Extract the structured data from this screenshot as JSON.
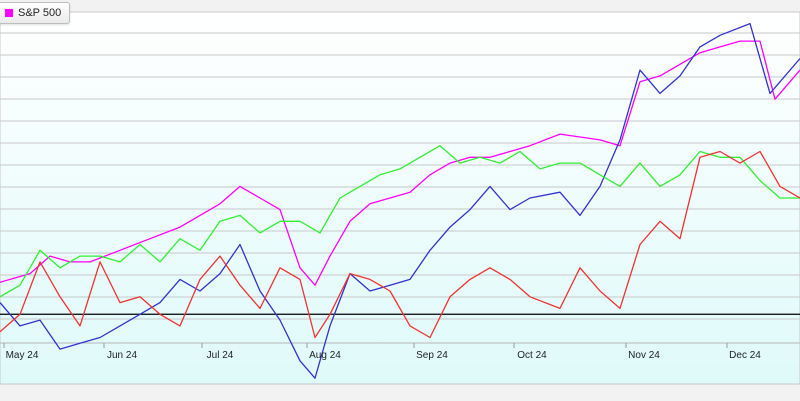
{
  "legend": {
    "label": "S&P 500",
    "color": "#ff00ff"
  },
  "colors": {
    "plot_top": "#ffffff",
    "plot_bottom": "#dffafa",
    "gridline": "#c8c8c8",
    "baseline": "#000000"
  },
  "chart_data": {
    "type": "line",
    "title": "",
    "xlabel": "",
    "ylabel": "",
    "x_tick_labels": [
      "May 24",
      "Jun 24",
      "Jul 24",
      "Aug 24",
      "Sep 24",
      "Oct 24",
      "Nov 24",
      "Dec 24"
    ],
    "x_range": [
      0,
      8
    ],
    "y_range": [
      -12,
      52
    ],
    "baseline_value": 0,
    "grid": true,
    "legend_placement": "top-left",
    "series": [
      {
        "name": "S&P 500",
        "color": "#ff00ff",
        "points": [
          [
            0,
            5.5
          ],
          [
            0.3,
            7
          ],
          [
            0.5,
            10
          ],
          [
            0.7,
            9
          ],
          [
            0.9,
            9
          ],
          [
            1.2,
            11
          ],
          [
            1.5,
            13
          ],
          [
            1.8,
            15
          ],
          [
            2.0,
            17
          ],
          [
            2.2,
            19
          ],
          [
            2.4,
            22
          ],
          [
            2.6,
            20
          ],
          [
            2.8,
            18
          ],
          [
            3.0,
            8
          ],
          [
            3.15,
            5
          ],
          [
            3.3,
            10
          ],
          [
            3.5,
            16
          ],
          [
            3.7,
            19
          ],
          [
            3.9,
            20
          ],
          [
            4.1,
            21
          ],
          [
            4.3,
            24
          ],
          [
            4.5,
            26
          ],
          [
            4.7,
            27
          ],
          [
            4.9,
            27
          ],
          [
            5.1,
            28
          ],
          [
            5.3,
            29
          ],
          [
            5.6,
            31
          ],
          [
            6.0,
            30
          ],
          [
            6.2,
            29
          ],
          [
            6.4,
            40
          ],
          [
            6.6,
            41
          ],
          [
            6.8,
            43
          ],
          [
            7.0,
            45
          ],
          [
            7.2,
            46
          ],
          [
            7.4,
            47
          ],
          [
            7.6,
            47
          ],
          [
            7.75,
            37
          ],
          [
            8.0,
            42
          ]
        ]
      },
      {
        "name": "",
        "color": "#3333cc",
        "points": [
          [
            0,
            2
          ],
          [
            0.2,
            -2
          ],
          [
            0.4,
            -1
          ],
          [
            0.6,
            -6
          ],
          [
            0.8,
            -5
          ],
          [
            1.0,
            -4
          ],
          [
            1.2,
            -2
          ],
          [
            1.4,
            0
          ],
          [
            1.6,
            2
          ],
          [
            1.8,
            6
          ],
          [
            2.0,
            4
          ],
          [
            2.2,
            7
          ],
          [
            2.4,
            12
          ],
          [
            2.6,
            4
          ],
          [
            2.8,
            -1
          ],
          [
            3.0,
            -8
          ],
          [
            3.15,
            -11
          ],
          [
            3.3,
            -2
          ],
          [
            3.5,
            7
          ],
          [
            3.7,
            4
          ],
          [
            3.9,
            5
          ],
          [
            4.1,
            6
          ],
          [
            4.3,
            11
          ],
          [
            4.5,
            15
          ],
          [
            4.7,
            18
          ],
          [
            4.9,
            22
          ],
          [
            5.1,
            18
          ],
          [
            5.3,
            20
          ],
          [
            5.6,
            21
          ],
          [
            5.8,
            17
          ],
          [
            6.0,
            22
          ],
          [
            6.2,
            30
          ],
          [
            6.4,
            42
          ],
          [
            6.6,
            38
          ],
          [
            6.8,
            41
          ],
          [
            7.0,
            46
          ],
          [
            7.2,
            48
          ],
          [
            7.5,
            50
          ],
          [
            7.7,
            38
          ],
          [
            8.0,
            44
          ]
        ]
      },
      {
        "name": "",
        "color": "#33ee33",
        "points": [
          [
            0,
            3
          ],
          [
            0.2,
            5
          ],
          [
            0.4,
            11
          ],
          [
            0.6,
            8
          ],
          [
            0.8,
            10
          ],
          [
            1.0,
            10
          ],
          [
            1.2,
            9
          ],
          [
            1.4,
            12
          ],
          [
            1.6,
            9
          ],
          [
            1.8,
            13
          ],
          [
            2.0,
            11
          ],
          [
            2.2,
            16
          ],
          [
            2.4,
            17
          ],
          [
            2.6,
            14
          ],
          [
            2.8,
            16
          ],
          [
            3.0,
            16
          ],
          [
            3.2,
            14
          ],
          [
            3.4,
            20
          ],
          [
            3.6,
            22
          ],
          [
            3.8,
            24
          ],
          [
            4.0,
            25
          ],
          [
            4.2,
            27
          ],
          [
            4.4,
            29
          ],
          [
            4.6,
            26
          ],
          [
            4.8,
            27
          ],
          [
            5.0,
            26
          ],
          [
            5.2,
            28
          ],
          [
            5.4,
            25
          ],
          [
            5.6,
            26
          ],
          [
            5.8,
            26
          ],
          [
            6.0,
            24
          ],
          [
            6.2,
            22
          ],
          [
            6.4,
            26
          ],
          [
            6.6,
            22
          ],
          [
            6.8,
            24
          ],
          [
            7.0,
            28
          ],
          [
            7.2,
            27
          ],
          [
            7.4,
            27
          ],
          [
            7.6,
            23
          ],
          [
            7.8,
            20
          ],
          [
            8.0,
            20
          ]
        ]
      },
      {
        "name": "",
        "color": "#ee3333",
        "points": [
          [
            0,
            -3
          ],
          [
            0.2,
            0
          ],
          [
            0.4,
            9
          ],
          [
            0.6,
            3
          ],
          [
            0.8,
            -2
          ],
          [
            1.0,
            9
          ],
          [
            1.2,
            2
          ],
          [
            1.4,
            3
          ],
          [
            1.6,
            0
          ],
          [
            1.8,
            -2
          ],
          [
            2.0,
            6
          ],
          [
            2.2,
            10
          ],
          [
            2.4,
            5
          ],
          [
            2.6,
            1
          ],
          [
            2.8,
            8
          ],
          [
            3.0,
            6
          ],
          [
            3.15,
            -4
          ],
          [
            3.3,
            0
          ],
          [
            3.5,
            7
          ],
          [
            3.7,
            6
          ],
          [
            3.9,
            4
          ],
          [
            4.1,
            -2
          ],
          [
            4.3,
            -4
          ],
          [
            4.5,
            3
          ],
          [
            4.7,
            6
          ],
          [
            4.9,
            8
          ],
          [
            5.1,
            6
          ],
          [
            5.3,
            3
          ],
          [
            5.6,
            1
          ],
          [
            5.8,
            8
          ],
          [
            6.0,
            4
          ],
          [
            6.2,
            1
          ],
          [
            6.4,
            12
          ],
          [
            6.6,
            16
          ],
          [
            6.8,
            13
          ],
          [
            7.0,
            27
          ],
          [
            7.2,
            28
          ],
          [
            7.4,
            26
          ],
          [
            7.6,
            28
          ],
          [
            7.8,
            22
          ],
          [
            8.0,
            20
          ]
        ]
      }
    ]
  }
}
